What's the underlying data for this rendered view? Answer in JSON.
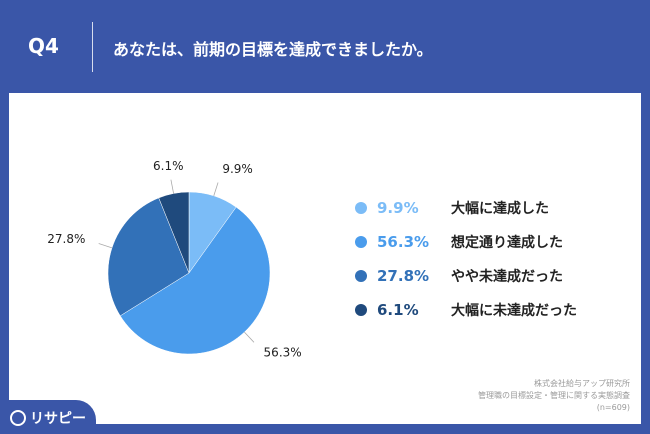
{
  "header": {
    "q_label": "Q4",
    "question": "あなたは、前期の目標を達成できましたか。"
  },
  "chart_data": {
    "type": "pie",
    "slices": [
      {
        "label": "大幅に達成した",
        "value": 9.9,
        "display": "9.9%",
        "color": "#7bbcf7"
      },
      {
        "label": "想定通り達成した",
        "value": 56.3,
        "display": "56.3%",
        "color": "#4a9cec"
      },
      {
        "label": "やや未達成だった",
        "value": 27.8,
        "display": "27.8%",
        "color": "#3271b8"
      },
      {
        "label": "大幅に未達成だった",
        "value": 6.1,
        "display": "6.1%",
        "color": "#1f4a7d"
      }
    ],
    "legend_position": "right"
  },
  "source": {
    "line1": "株式会社給与アップ研究所",
    "line2": "管理職の目標設定・管理に関する実態調査",
    "line3": "(n=609)"
  },
  "logo": {
    "text": "リサピー"
  }
}
